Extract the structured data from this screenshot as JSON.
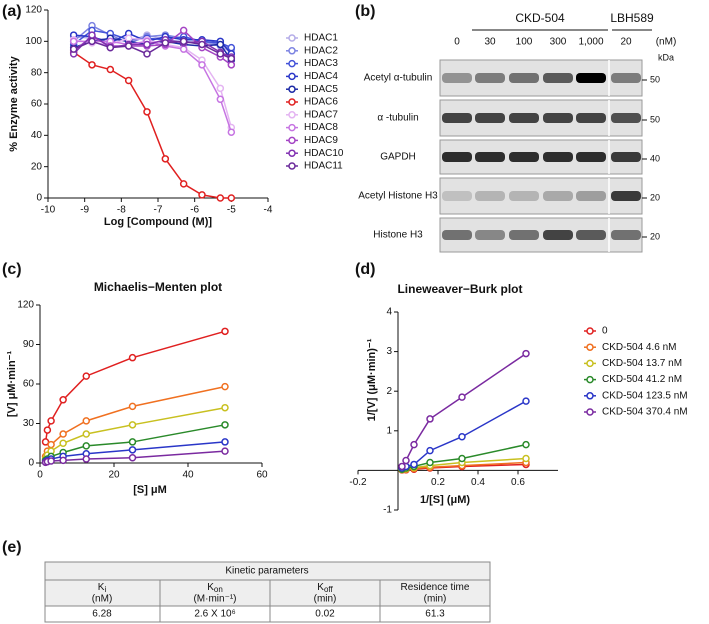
{
  "panel_labels": [
    "(a)",
    "(b)",
    "(c)",
    "(d)",
    "(e)"
  ],
  "chart_data": [
    {
      "type": "line",
      "xlabel": "Log [Compound (M)]",
      "ylabel": "% Enzyme activity",
      "x": [
        -9.3,
        -8.8,
        -8.3,
        -7.8,
        -7.3,
        -6.8,
        -6.3,
        -5.8,
        -5.3,
        -5
      ],
      "xlim": [
        -10,
        -4
      ],
      "xticks": [
        -10,
        -9,
        -8,
        -7,
        -6,
        -5,
        -4
      ],
      "ylim": [
        0,
        120
      ],
      "yticks": [
        0,
        20,
        40,
        60,
        80,
        100,
        120
      ],
      "series": [
        {
          "name": "HDAC1",
          "color": "#b4ace8",
          "values": [
            103,
            102,
            101,
            100,
            104,
            101,
            100,
            99,
            97,
            93
          ]
        },
        {
          "name": "HDAC2",
          "color": "#7d84e2",
          "values": [
            100,
            110,
            104,
            99,
            103,
            104,
            102,
            100,
            98,
            95
          ]
        },
        {
          "name": "HDAC3",
          "color": "#4352d8",
          "values": [
            98,
            107,
            105,
            101,
            102,
            101,
            103,
            100,
            99,
            96
          ]
        },
        {
          "name": "HDAC4",
          "color": "#2a36c8",
          "values": [
            104,
            103,
            99,
            105,
            100,
            103,
            101,
            101,
            100,
            92
          ]
        },
        {
          "name": "HDAC5",
          "color": "#1c2aa6",
          "values": [
            96,
            100,
            102,
            100,
            98,
            100,
            98,
            97,
            98,
            88
          ]
        },
        {
          "name": "HDAC6",
          "color": "#e02020",
          "values": [
            93,
            85,
            82,
            75,
            55,
            25,
            9,
            2,
            0,
            0
          ]
        },
        {
          "name": "HDAC7",
          "color": "#e4b4f2",
          "values": [
            101,
            99,
            98,
            102,
            101,
            98,
            96,
            88,
            70,
            45
          ]
        },
        {
          "name": "HDAC8",
          "color": "#c674e2",
          "values": [
            100,
            100,
            100,
            98,
            100,
            97,
            95,
            85,
            63,
            42
          ]
        },
        {
          "name": "HDAC9",
          "color": "#a444c4",
          "values": [
            94,
            103,
            97,
            97,
            97,
            98,
            107,
            96,
            90,
            85
          ]
        },
        {
          "name": "HDAC10",
          "color": "#8232b2",
          "values": [
            92,
            104,
            96,
            98,
            98,
            101,
            99,
            100,
            93,
            90
          ]
        },
        {
          "name": "HDAC11",
          "color": "#6a2a9a",
          "values": [
            95,
            100,
            96,
            97,
            92,
            99,
            100,
            98,
            92,
            89
          ]
        }
      ]
    },
    {
      "type": "line",
      "title": "Michaelis−Menten plot",
      "xlabel": "[S] μM",
      "ylabel": "[V] μM·min⁻¹",
      "x": [
        1.5,
        2,
        3,
        6.25,
        12.5,
        25,
        50
      ],
      "xlim": [
        0,
        60
      ],
      "xticks": [
        0,
        20,
        40,
        60
      ],
      "ylim": [
        0,
        120
      ],
      "yticks": [
        0,
        30,
        60,
        90,
        120
      ],
      "series": [
        {
          "color": "#e02020",
          "values": [
            16,
            25,
            32,
            48,
            66,
            80,
            100
          ]
        },
        {
          "color": "#f07020",
          "values": [
            5,
            9,
            14,
            22,
            32,
            43,
            58
          ]
        },
        {
          "color": "#c8c020",
          "values": [
            3,
            6,
            9,
            15,
            22,
            29,
            42
          ]
        },
        {
          "color": "#2a8a2a",
          "values": [
            2,
            3,
            5,
            8,
            13,
            16,
            29
          ]
        },
        {
          "color": "#2a36c8",
          "values": [
            1,
            2,
            3,
            5,
            7,
            10,
            16
          ]
        },
        {
          "color": "#7a2aa0",
          "values": [
            0.5,
            1,
            1.5,
            2,
            3,
            4,
            9
          ]
        }
      ]
    },
    {
      "type": "line",
      "title": "Lineweaver−Burk plot",
      "xlabel": "1/[S] (μM)",
      "ylabel": "1/[V] (μM·min)⁻¹",
      "x": [
        0.02,
        0.04,
        0.08,
        0.16,
        0.32,
        0.64
      ],
      "xlim": [
        -0.2,
        0.8
      ],
      "xticks": [
        -0.2,
        0.2,
        0.4,
        0.6
      ],
      "ylim": [
        -1,
        4
      ],
      "yticks": [
        -1,
        1,
        2,
        3,
        4
      ],
      "series": [
        {
          "name": "0",
          "color": "#e02020",
          "values": [
            0.01,
            0.015,
            0.03,
            0.06,
            0.1,
            0.15
          ]
        },
        {
          "name": "CKD-504 4.6 nM",
          "color": "#f07020",
          "values": [
            0.02,
            0.03,
            0.05,
            0.08,
            0.12,
            0.2
          ]
        },
        {
          "name": "CKD-504 13.7 nM",
          "color": "#c8c020",
          "values": [
            0.02,
            0.04,
            0.07,
            0.12,
            0.2,
            0.3
          ]
        },
        {
          "name": "CKD-504 41.2 nM",
          "color": "#2a8a2a",
          "values": [
            0.03,
            0.06,
            0.1,
            0.2,
            0.3,
            0.65
          ]
        },
        {
          "name": "CKD-504 123.5 nM",
          "color": "#2a36c8",
          "values": [
            0.06,
            0.1,
            0.15,
            0.5,
            0.85,
            1.75
          ]
        },
        {
          "name": "CKD-504 370.4 nM",
          "color": "#7a2aa0",
          "values": [
            0.1,
            0.25,
            0.65,
            1.3,
            1.85,
            2.95
          ]
        }
      ]
    }
  ],
  "blot": {
    "groups": [
      "CKD-504",
      "LBH589"
    ],
    "lanes": [
      "0",
      "30",
      "100",
      "300",
      "1,000",
      "20"
    ],
    "unit": "(nM)",
    "kda_label": "kDa",
    "rows": [
      {
        "label": "Acetyl α-tubulin",
        "kda": "50"
      },
      {
        "label": "α -tubulin",
        "kda": "50"
      },
      {
        "label": "GAPDH",
        "kda": "40"
      },
      {
        "label": "Acetyl Histone H3",
        "kda": "20"
      },
      {
        "label": "Histone H3",
        "kda": "20"
      }
    ]
  },
  "table": {
    "title": "Kinetic parameters",
    "headers": [
      {
        "symbol": "K",
        "sub": "i",
        "unit": "(nM)"
      },
      {
        "symbol": "K",
        "sub": "on",
        "unit": "(M·min⁻¹)"
      },
      {
        "symbol": "K",
        "sub": "off",
        "unit": "(min)"
      },
      {
        "symbol": "Residence time",
        "unit": "(min)"
      }
    ],
    "values": [
      6.28,
      "2.6 X 10⁶",
      0.02,
      61.3
    ]
  }
}
